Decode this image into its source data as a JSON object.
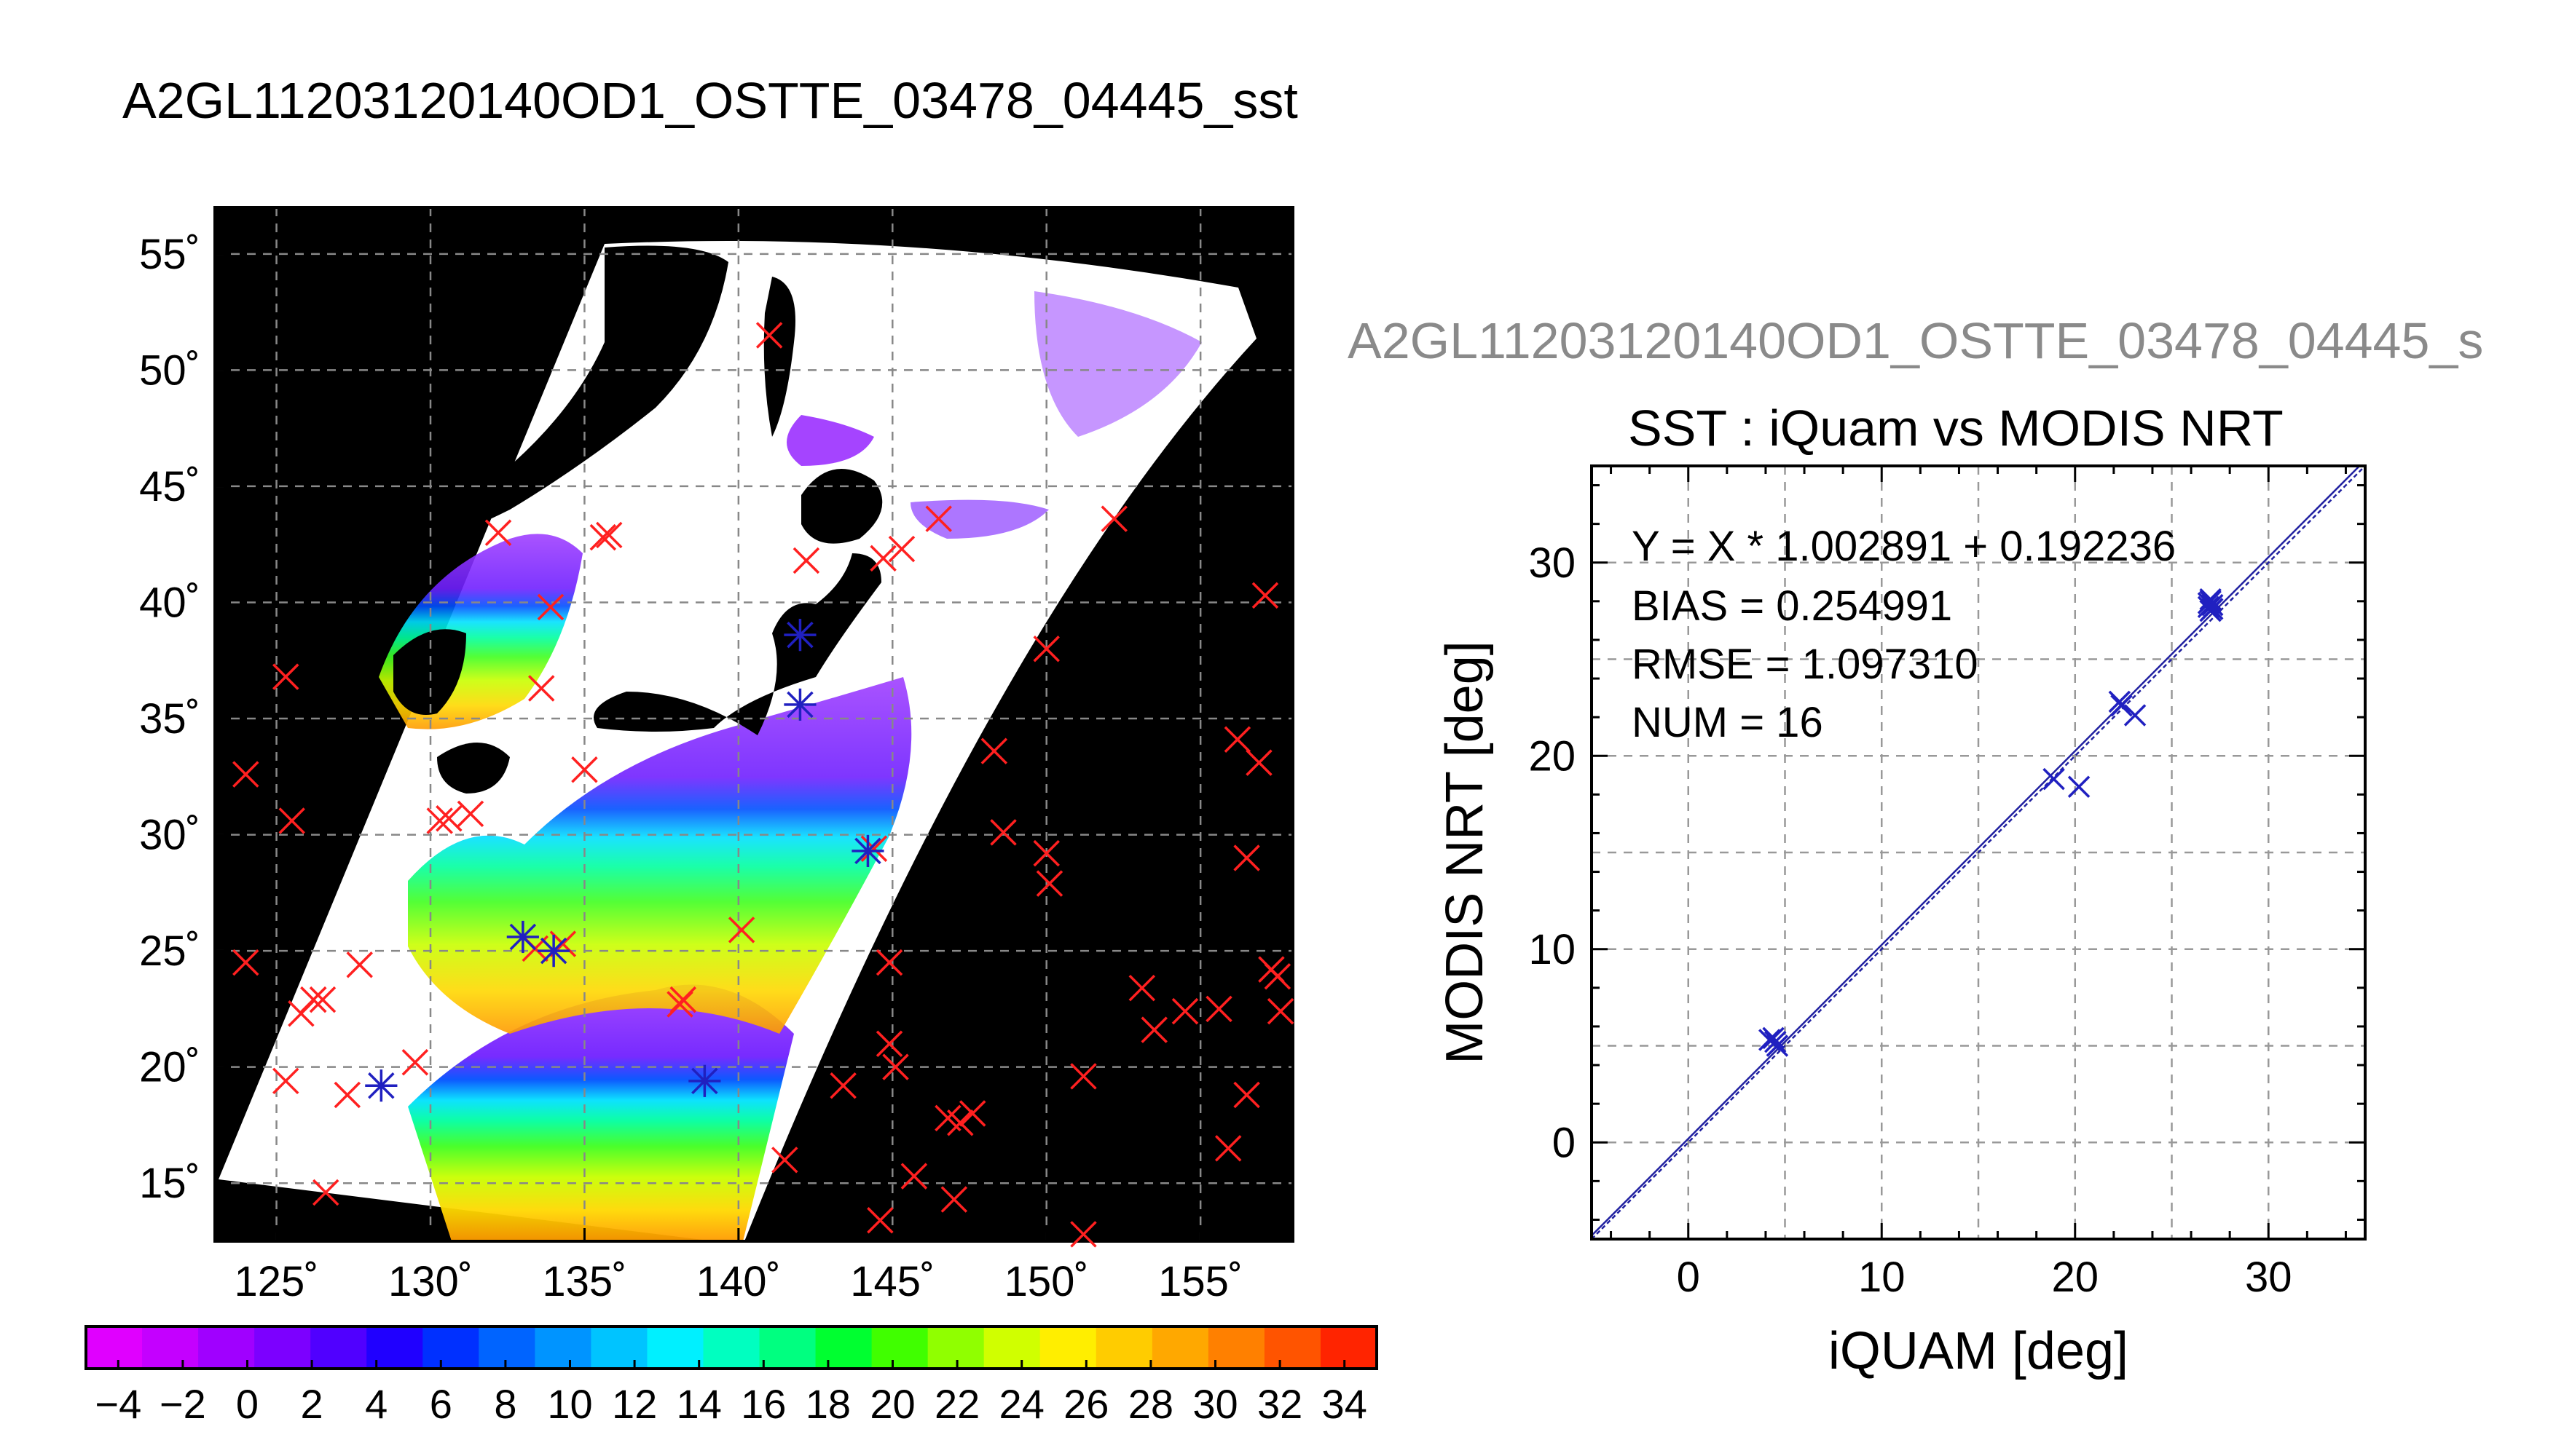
{
  "page_title": "A2GL11203120140OD1_OSTTE_03478_04445_sst",
  "chart_data": [
    {
      "type": "scatter",
      "subtype": "map",
      "x_ticks": [
        "125˚",
        "130˚",
        "135˚",
        "140˚",
        "145˚",
        "150˚",
        "155˚"
      ],
      "y_ticks": [
        "55˚",
        "50˚",
        "45˚",
        "40˚",
        "35˚",
        "30˚",
        "25˚",
        "20˚",
        "15˚"
      ],
      "xlim": [
        123,
        158
      ],
      "ylim": [
        12.5,
        57
      ],
      "grid": true,
      "colorbar": {
        "ticks": [
          "−4",
          "−2",
          "0",
          "2",
          "4",
          "6",
          "8",
          "10",
          "12",
          "14",
          "16",
          "18",
          "20",
          "22",
          "24",
          "26",
          "28",
          "30",
          "32",
          "34"
        ],
        "range": [
          -5,
          35
        ],
        "colors": [
          "#e000ff",
          "#c400ff",
          "#a000ff",
          "#7c00ff",
          "#5000ff",
          "#2000ff",
          "#0030ff",
          "#0064ff",
          "#0094ff",
          "#00c4ff",
          "#00f0ff",
          "#00ffc0",
          "#00ff80",
          "#00ff30",
          "#40ff00",
          "#90ff00",
          "#d0ff00",
          "#ffee00",
          "#ffcc00",
          "#ffa800",
          "#ff8000",
          "#ff5400",
          "#ff2400"
        ]
      },
      "series": [
        {
          "color": "#ff2020",
          "marker": "x",
          "points": [
            [
              124,
              32.6
            ],
            [
              124,
              24.5
            ],
            [
              125.3,
              36.8
            ],
            [
              125.5,
              30.6
            ],
            [
              125.3,
              19.4
            ],
            [
              125.8,
              22.3
            ],
            [
              126.2,
              22.9
            ],
            [
              126.5,
              22.9
            ],
            [
              126.6,
              14.6
            ],
            [
              127.3,
              18.8
            ],
            [
              127.7,
              24.4
            ],
            [
              129.5,
              20.2
            ],
            [
              130.3,
              30.6
            ],
            [
              130.6,
              30.7
            ],
            [
              131.3,
              30.9
            ],
            [
              132.2,
              43.0
            ],
            [
              133.4,
              25.1
            ],
            [
              133.6,
              36.3
            ],
            [
              133.9,
              39.8
            ],
            [
              134.3,
              25.3
            ],
            [
              135,
              32.8
            ],
            [
              135.6,
              42.8
            ],
            [
              135.8,
              42.9
            ],
            [
              138.1,
              22.7
            ],
            [
              138.2,
              22.9
            ],
            [
              140.1,
              25.9
            ],
            [
              141,
              51.5
            ],
            [
              141.5,
              16.0
            ],
            [
              142.2,
              41.8
            ],
            [
              143.4,
              19.2
            ],
            [
              144.4,
              29.4
            ],
            [
              144.7,
              41.9
            ],
            [
              144.6,
              13.4
            ],
            [
              144.9,
              24.5
            ],
            [
              144.9,
              21.0
            ],
            [
              145.1,
              20.0
            ],
            [
              145.3,
              42.3
            ],
            [
              145.7,
              15.3
            ],
            [
              146.5,
              43.6
            ],
            [
              146.8,
              17.8
            ],
            [
              147,
              14.3
            ],
            [
              147.2,
              17.6
            ],
            [
              147.6,
              18.0
            ],
            [
              148.3,
              33.6
            ],
            [
              148.6,
              30.1
            ],
            [
              150,
              38.0
            ],
            [
              150,
              29.2
            ],
            [
              150.1,
              27.9
            ],
            [
              151.2,
              19.6
            ],
            [
              151.2,
              12.8
            ],
            [
              152.2,
              43.6
            ],
            [
              153.1,
              23.4
            ],
            [
              153.5,
              21.6
            ],
            [
              154.5,
              22.4
            ],
            [
              155.6,
              22.5
            ],
            [
              155.9,
              16.5
            ],
            [
              156.2,
              34.1
            ],
            [
              156.5,
              18.8
            ],
            [
              156.5,
              29.0
            ],
            [
              156.9,
              33.1
            ],
            [
              157.1,
              40.3
            ],
            [
              157.3,
              24.2
            ],
            [
              157.5,
              23.9
            ],
            [
              157.6,
              22.4
            ]
          ]
        },
        {
          "color": "#2020c0",
          "marker": "asterisk",
          "points": [
            [
              128.4,
              19.2
            ],
            [
              133.0,
              25.6
            ],
            [
              134.0,
              25.0
            ],
            [
              138.9,
              19.4
            ],
            [
              142.0,
              38.6
            ],
            [
              142.0,
              35.6
            ],
            [
              144.2,
              29.3
            ]
          ]
        }
      ]
    },
    {
      "type": "scatter",
      "title": "SST : iQuam vs MODIS NRT",
      "header": "A2GL11203120140OD1_OSTTE_03478_04445_s",
      "xlabel": "iQUAM [deg]",
      "ylabel": "MODIS NRT [deg]",
      "xlim": [
        -5,
        35
      ],
      "ylim": [
        -5,
        35
      ],
      "x_ticks": [
        "0",
        "10",
        "20",
        "30"
      ],
      "y_ticks": [
        "0",
        "10",
        "20",
        "30"
      ],
      "grid": true,
      "annotations": [
        "Y = X * 1.002891 + 0.192236",
        "BIAS = 0.254991",
        "RMSE = 1.097310",
        "NUM = 16"
      ],
      "fit_line": {
        "slope": 1.002891,
        "intercept": 0.192236
      },
      "series": [
        {
          "color": "#2020c0",
          "marker": "x",
          "points": [
            [
              4.2,
              5.3
            ],
            [
              4.5,
              5.2
            ],
            [
              4.6,
              5.0
            ],
            [
              18.9,
              18.8
            ],
            [
              20.2,
              18.4
            ],
            [
              22.3,
              22.8
            ],
            [
              23.1,
              22.1
            ],
            [
              26.9,
              27.9
            ],
            [
              27.0,
              28.1
            ],
            [
              27.1,
              27.6
            ],
            [
              27.0,
              27.5
            ],
            [
              27.1,
              27.8
            ],
            [
              27.0,
              28.0
            ],
            [
              26.9,
              27.7
            ],
            [
              22.4,
              22.6
            ],
            [
              4.4,
              5.4
            ]
          ]
        }
      ]
    }
  ]
}
